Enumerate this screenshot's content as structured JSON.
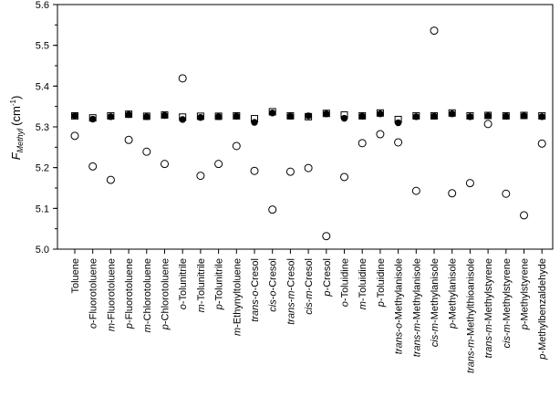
{
  "chart_data": {
    "type": "scatter",
    "title": "",
    "ylabel": {
      "main": "F",
      "subscript": "Methyl",
      "unit": "(cm",
      "unit_sup": "-1",
      "unit_close": ")"
    },
    "xlabel": "",
    "ylim": [
      5.0,
      5.6
    ],
    "yticks": [
      "5.0",
      "5.1",
      "5.2",
      "5.3",
      "5.4",
      "5.5",
      "5.6"
    ],
    "grid": false,
    "categories": [
      [
        {
          "t": "Toluene"
        }
      ],
      [
        {
          "t": "o",
          "i": true
        },
        {
          "t": "-Fluorotoluene"
        }
      ],
      [
        {
          "t": "m",
          "i": true
        },
        {
          "t": "-Fluorotoluene"
        }
      ],
      [
        {
          "t": "p",
          "i": true
        },
        {
          "t": "-Fluorotoluene"
        }
      ],
      [
        {
          "t": "m",
          "i": true
        },
        {
          "t": "-Chlorotoluene"
        }
      ],
      [
        {
          "t": "p",
          "i": true
        },
        {
          "t": "-Chlorotoluene"
        }
      ],
      [
        {
          "t": "o",
          "i": true
        },
        {
          "t": "-Tolunitrile"
        }
      ],
      [
        {
          "t": "m",
          "i": true
        },
        {
          "t": "-Tolunitrile"
        }
      ],
      [
        {
          "t": "p",
          "i": true
        },
        {
          "t": "-Tolunitrile"
        }
      ],
      [
        {
          "t": "m",
          "i": true
        },
        {
          "t": "-Ethynyltoluene"
        }
      ],
      [
        {
          "t": "trans",
          "i": true
        },
        {
          "t": "-"
        },
        {
          "t": "o",
          "i": true
        },
        {
          "t": "-Cresol"
        }
      ],
      [
        {
          "t": "cis",
          "i": true
        },
        {
          "t": "-"
        },
        {
          "t": "o",
          "i": true
        },
        {
          "t": "-Cresol"
        }
      ],
      [
        {
          "t": "trans",
          "i": true
        },
        {
          "t": "-"
        },
        {
          "t": "m",
          "i": true
        },
        {
          "t": "-Cresol"
        }
      ],
      [
        {
          "t": "cis",
          "i": true
        },
        {
          "t": "-"
        },
        {
          "t": "m",
          "i": true
        },
        {
          "t": "-Cresol"
        }
      ],
      [
        {
          "t": "p",
          "i": true
        },
        {
          "t": "-Cresol"
        }
      ],
      [
        {
          "t": "o",
          "i": true
        },
        {
          "t": "-Toluidine"
        }
      ],
      [
        {
          "t": "m",
          "i": true
        },
        {
          "t": "-Toluidine"
        }
      ],
      [
        {
          "t": "p",
          "i": true
        },
        {
          "t": "-Toluidine"
        }
      ],
      [
        {
          "t": "trans",
          "i": true
        },
        {
          "t": "-"
        },
        {
          "t": "o",
          "i": true
        },
        {
          "t": "-Methylanisole"
        }
      ],
      [
        {
          "t": "trans",
          "i": true
        },
        {
          "t": "-"
        },
        {
          "t": "m",
          "i": true
        },
        {
          "t": "-Methylanisole"
        }
      ],
      [
        {
          "t": "cis",
          "i": true
        },
        {
          "t": "-"
        },
        {
          "t": "m",
          "i": true
        },
        {
          "t": "-Methylanisole"
        }
      ],
      [
        {
          "t": "p",
          "i": true
        },
        {
          "t": "-Methylanisole"
        }
      ],
      [
        {
          "t": "trans",
          "i": true
        },
        {
          "t": "-"
        },
        {
          "t": "m",
          "i": true
        },
        {
          "t": "-Methylthioanisole"
        }
      ],
      [
        {
          "t": "trans",
          "i": true
        },
        {
          "t": "-"
        },
        {
          "t": "m",
          "i": true
        },
        {
          "t": "-Methylstyrene"
        }
      ],
      [
        {
          "t": "cis",
          "i": true
        },
        {
          "t": "-"
        },
        {
          "t": "m",
          "i": true
        },
        {
          "t": "-Methylstyrene"
        }
      ],
      [
        {
          "t": "p",
          "i": true
        },
        {
          "t": "-Methylstyrene"
        }
      ],
      [
        {
          "t": "p",
          "i": true
        },
        {
          "t": "-Methylbenzaldehyde"
        }
      ]
    ],
    "series": [
      {
        "marker": "open-square",
        "color": "#000000",
        "values": [
          5.327,
          5.322,
          5.327,
          5.331,
          5.326,
          5.329,
          5.324,
          5.326,
          5.326,
          5.327,
          5.32,
          5.337,
          5.327,
          5.325,
          5.333,
          5.329,
          5.327,
          5.334,
          5.318,
          5.327,
          5.327,
          5.334,
          5.327,
          5.328,
          5.327,
          5.328,
          5.327
        ]
      },
      {
        "marker": "filled-circle",
        "color": "#000000",
        "values": [
          5.327,
          5.319,
          5.325,
          5.33,
          5.325,
          5.328,
          5.318,
          5.323,
          5.325,
          5.326,
          5.311,
          5.334,
          5.326,
          5.327,
          5.332,
          5.321,
          5.326,
          5.332,
          5.31,
          5.325,
          5.326,
          5.332,
          5.325,
          5.327,
          5.326,
          5.327,
          5.325
        ]
      },
      {
        "marker": "open-circle",
        "color": "#000000",
        "values": [
          5.278,
          5.203,
          5.17,
          5.268,
          5.239,
          5.209,
          5.419,
          5.18,
          5.209,
          5.253,
          5.192,
          5.097,
          5.19,
          5.199,
          5.032,
          5.177,
          5.26,
          5.282,
          5.262,
          5.143,
          5.536,
          5.137,
          5.162,
          5.307,
          5.136,
          5.083,
          5.259
        ]
      }
    ]
  }
}
